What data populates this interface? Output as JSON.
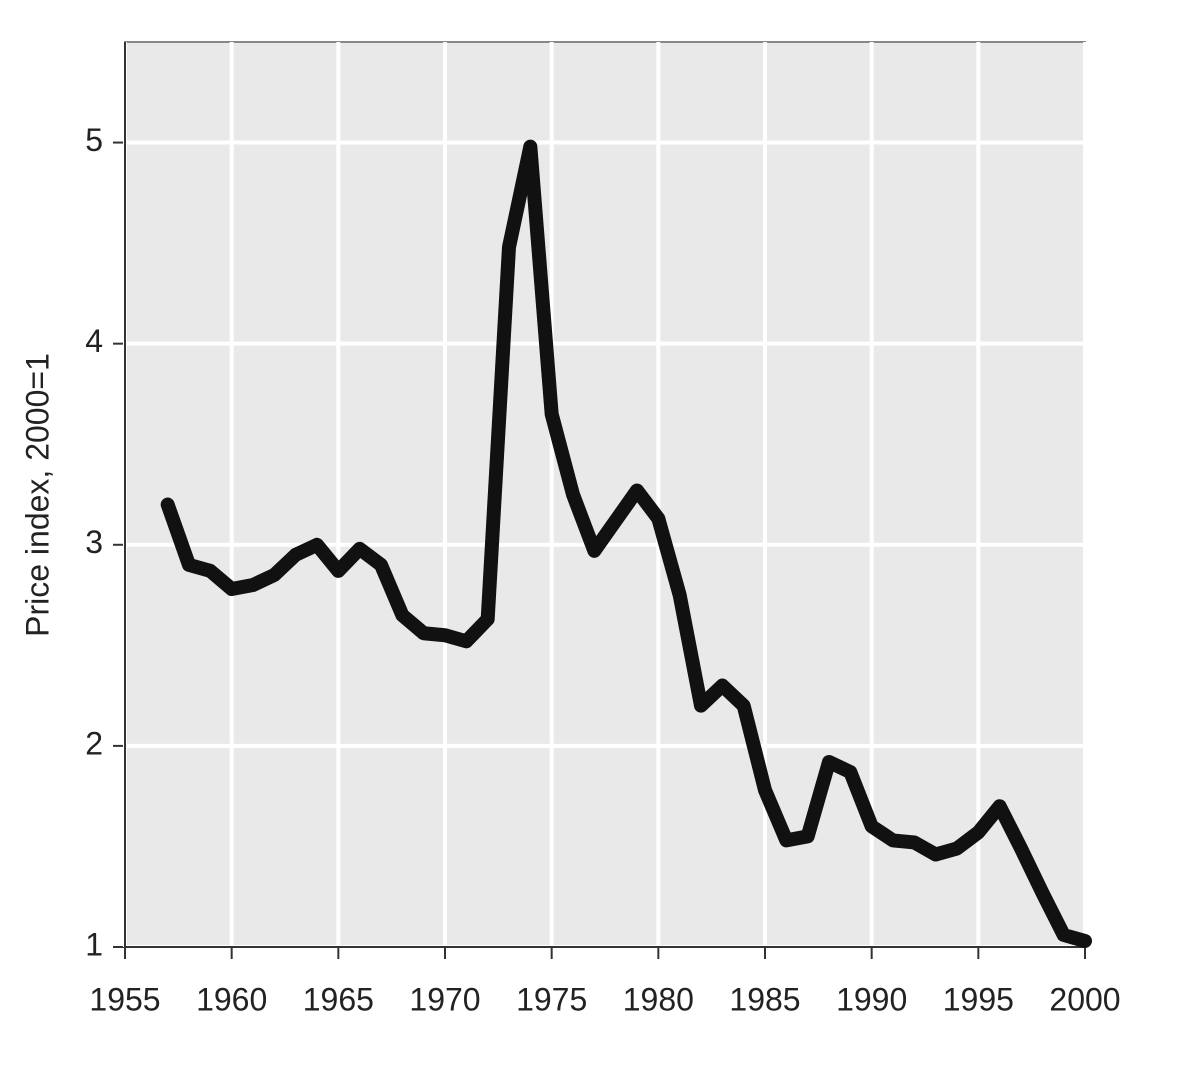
{
  "chart_data": {
    "type": "line",
    "y_label": "Price index, 2000=1",
    "x": [
      1957,
      1958,
      1959,
      1960,
      1961,
      1962,
      1963,
      1964,
      1965,
      1966,
      1967,
      1968,
      1969,
      1970,
      1971,
      1972,
      1973,
      1974,
      1975,
      1976,
      1977,
      1978,
      1979,
      1980,
      1981,
      1982,
      1983,
      1984,
      1985,
      1986,
      1987,
      1988,
      1989,
      1990,
      1991,
      1992,
      1993,
      1994,
      1995,
      1996,
      1997,
      1998,
      1999,
      2000
    ],
    "values": [
      3.2,
      2.9,
      2.87,
      2.78,
      2.8,
      2.85,
      2.95,
      3.0,
      2.87,
      2.98,
      2.9,
      2.65,
      2.56,
      2.55,
      2.52,
      2.63,
      4.48,
      4.98,
      3.65,
      3.25,
      2.97,
      3.12,
      3.27,
      3.13,
      2.75,
      2.2,
      2.3,
      2.2,
      1.78,
      1.53,
      1.55,
      1.92,
      1.87,
      1.6,
      1.53,
      1.52,
      1.46,
      1.49,
      1.57,
      1.7,
      1.49,
      1.27,
      1.06,
      1.03
    ],
    "color": "#111111",
    "xlim": [
      1955,
      2000
    ],
    "ylim": [
      1,
      5.5
    ],
    "xticks": [
      1955,
      1960,
      1965,
      1970,
      1975,
      1980,
      1985,
      1990,
      1995,
      2000
    ],
    "yticks": [
      1,
      2,
      3,
      4,
      5
    ],
    "grid": true
  }
}
